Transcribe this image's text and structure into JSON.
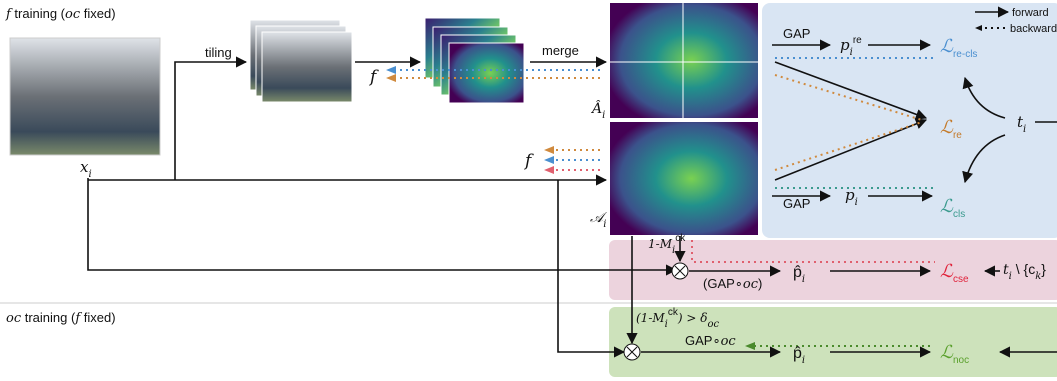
{
  "sections": {
    "f_training": {
      "var": "f",
      "text": " training (",
      "fixed_var": "oc",
      "end": " fixed)"
    },
    "oc_training": {
      "var": "oc",
      "text": " training (",
      "fixed_var": "f",
      "end": " fixed)"
    }
  },
  "legend": {
    "forward": "forward",
    "backward": "backward"
  },
  "operations": {
    "tiling": "tiling",
    "merge": "merge",
    "gap_re": "GAP",
    "gap_cls": "GAP",
    "gap_cse": {
      "open": "(GAP∘",
      "oc": "oc",
      "close": ")"
    },
    "gap_noc": {
      "text": "GAP∘",
      "oc": "oc"
    },
    "mask": {
      "text": "1-M",
      "sub": "i",
      "sup": "ck"
    },
    "threshold": {
      "open": "(1-M",
      "sub": "i",
      "sup": "ck",
      "close": ") > δ",
      "delta_sub": "oc"
    }
  },
  "variables": {
    "x": {
      "main": "x",
      "sub": "i"
    },
    "f_top": "f",
    "f_mid": "f",
    "a_hat": {
      "main": "Â",
      "sub": "i"
    },
    "a": {
      "main": "𝒜",
      "sub": "i"
    },
    "p_re": {
      "main": "p",
      "sub": "i",
      "sup": "re"
    },
    "p": {
      "main": "p",
      "sub": "i"
    },
    "t": {
      "main": "t",
      "sub": "i"
    },
    "p_hat_cse": {
      "main": "p̂",
      "sub": "i"
    },
    "p_hat_noc": {
      "main": "p̂",
      "sub": "i"
    },
    "t_minus": {
      "main": "t",
      "sub": "i",
      "rest": " \\ {c",
      "sub2": "k",
      "close": "}"
    }
  },
  "losses": {
    "re_cls": {
      "main": "ℒ",
      "sub": "re-cls"
    },
    "re": {
      "main": "ℒ",
      "sub": "re"
    },
    "cls": {
      "main": "ℒ",
      "sub": "cls"
    },
    "cse": {
      "main": "ℒ",
      "sub": "cse"
    },
    "noc": {
      "main": "ℒ",
      "sub": "noc"
    }
  }
}
